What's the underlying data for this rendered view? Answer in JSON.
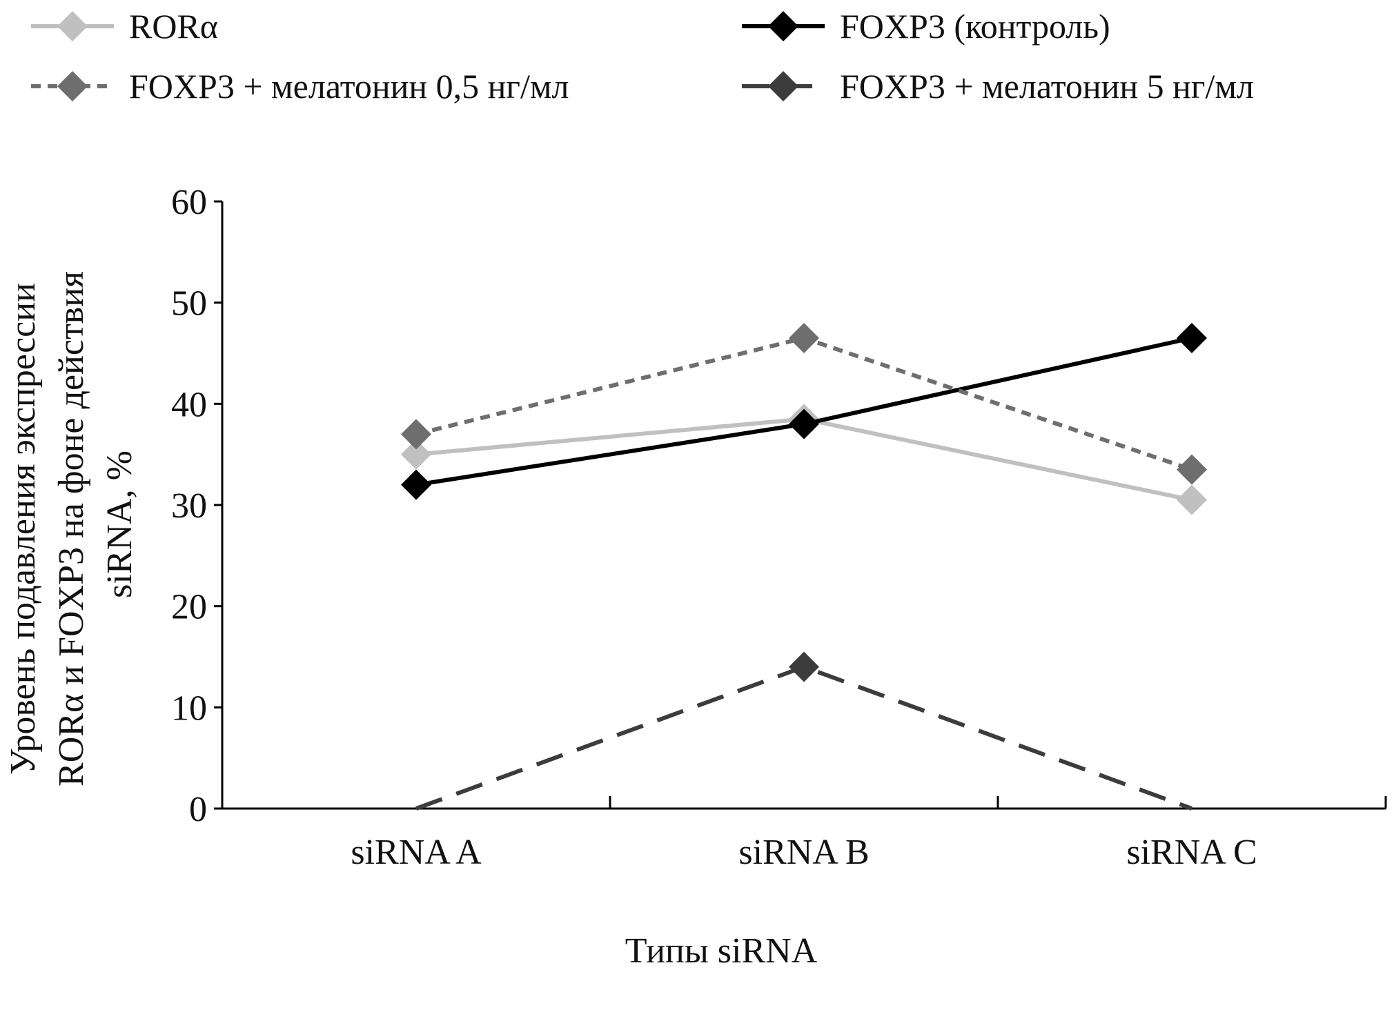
{
  "chart_data": {
    "type": "line",
    "categories": [
      "siRNA A",
      "siRNA B",
      "siRNA C"
    ],
    "xlabel": "Типы siRNA",
    "ylabel_lines": [
      "Уровень подавления экспрессии",
      "RORα и FOXP3 на фоне действия",
      "siRNA, %"
    ],
    "ylim": [
      0,
      60
    ],
    "yticks": [
      0,
      10,
      20,
      30,
      40,
      50,
      60
    ],
    "legend_position": "top",
    "series": [
      {
        "name": "RORα",
        "values": [
          35,
          38.5,
          30.5
        ],
        "color": "#c0c0c0",
        "dash": "solid",
        "marker_at": [
          0,
          1,
          2
        ]
      },
      {
        "name": "FOXP3 (контроль)",
        "values": [
          32,
          38,
          46.5
        ],
        "color": "#000000",
        "dash": "solid",
        "marker_at": [
          0,
          1,
          2
        ]
      },
      {
        "name": "FOXP3 + мелатонин 0,5 нг/мл",
        "values": [
          37,
          46.5,
          33.5
        ],
        "color": "#6e6e6e",
        "dash": "dot",
        "marker_at": [
          0,
          1,
          2
        ]
      },
      {
        "name": "FOXP3 + мелатонин 5 нг/мл",
        "values": [
          0,
          14,
          0
        ],
        "color": "#3c3c3c",
        "dash": "dash",
        "marker_at": [
          1
        ]
      }
    ]
  }
}
